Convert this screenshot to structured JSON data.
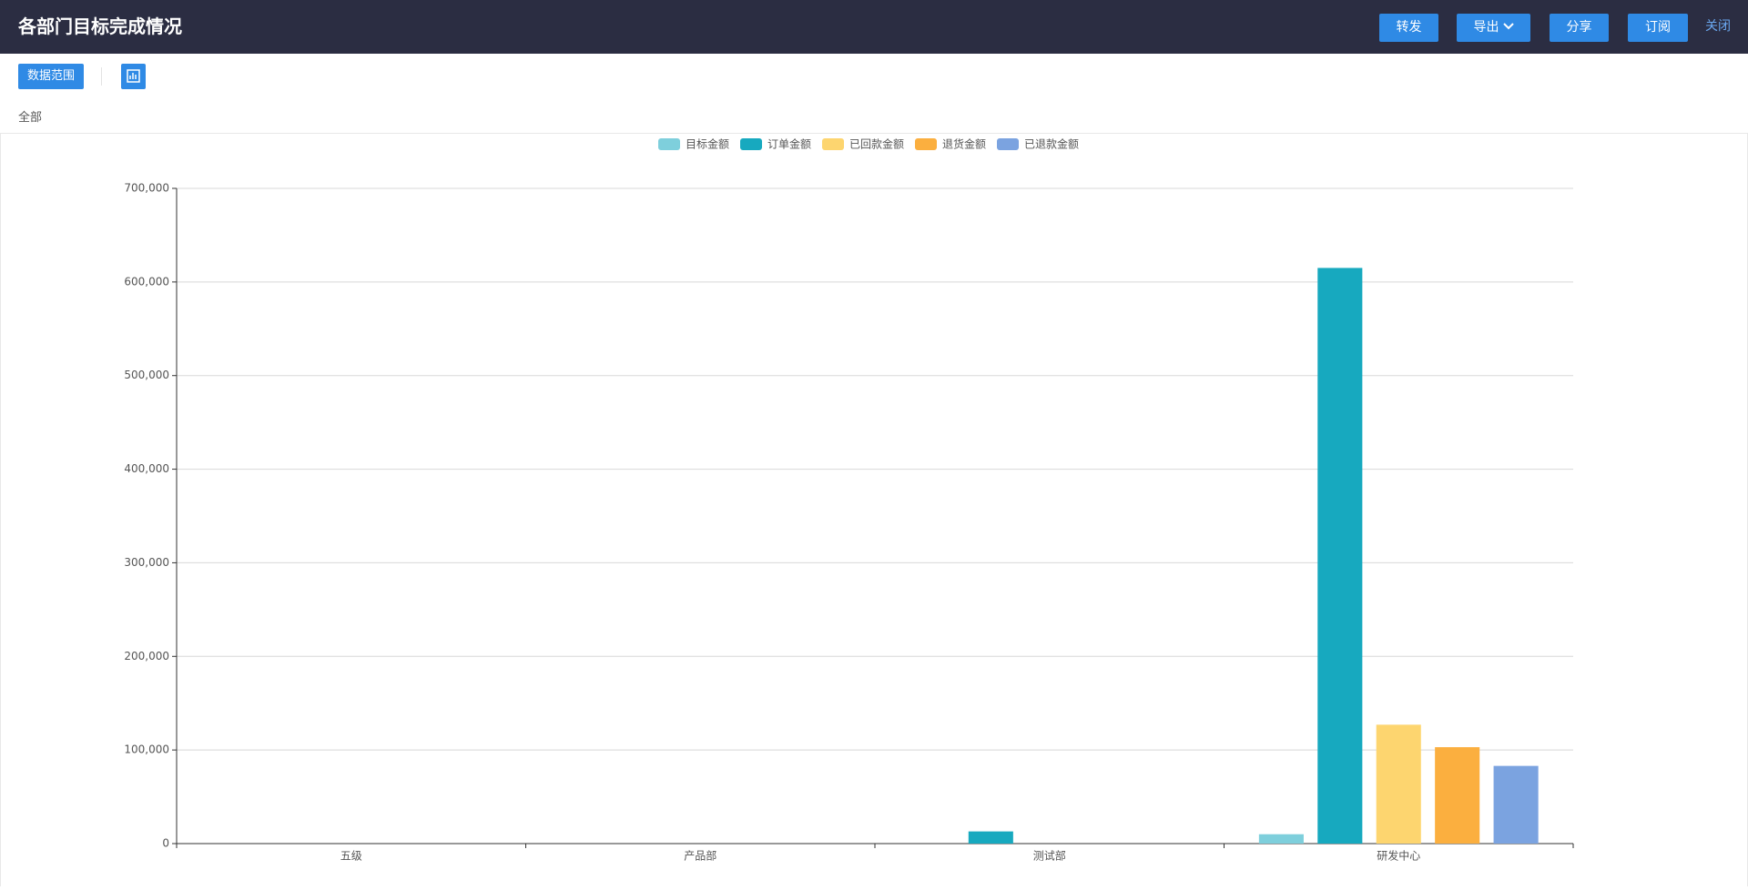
{
  "header": {
    "title": "各部门目标完成情况",
    "buttons": [
      "转发",
      "导出",
      "分享",
      "订阅"
    ],
    "close": "关闭"
  },
  "toolbar": {
    "range_button": "数据范围",
    "scope": "全部"
  },
  "chart_data": {
    "type": "bar",
    "categories": [
      "五级",
      "产品部",
      "测试部",
      "研发中心"
    ],
    "series": [
      {
        "name": "目标金额",
        "color": "#7ecfdc",
        "values": [
          0,
          0,
          0,
          10000
        ]
      },
      {
        "name": "订单金额",
        "color": "#17a9bf",
        "values": [
          0,
          0,
          13000,
          615000
        ]
      },
      {
        "name": "已回款金额",
        "color": "#fdd56f",
        "values": [
          0,
          0,
          0,
          127000
        ]
      },
      {
        "name": "退货金额",
        "color": "#fbaf3f",
        "values": [
          0,
          0,
          0,
          103000
        ]
      },
      {
        "name": "已退款金额",
        "color": "#7ba3e0",
        "values": [
          0,
          0,
          0,
          83000
        ]
      }
    ],
    "ylim": [
      0,
      700000
    ],
    "yticks": [
      0,
      {
        "value": 100000,
        "label": "100,000"
      },
      {
        "value": 200000,
        "label": "200,000"
      },
      {
        "value": 300000,
        "label": "300,000"
      },
      {
        "value": 400000,
        "label": "400,000"
      },
      {
        "value": 500000,
        "label": "500,000"
      },
      {
        "value": 600000,
        "label": "600,000"
      },
      {
        "value": 700000,
        "label": "700,000"
      }
    ],
    "grid": true,
    "legend": "top"
  }
}
